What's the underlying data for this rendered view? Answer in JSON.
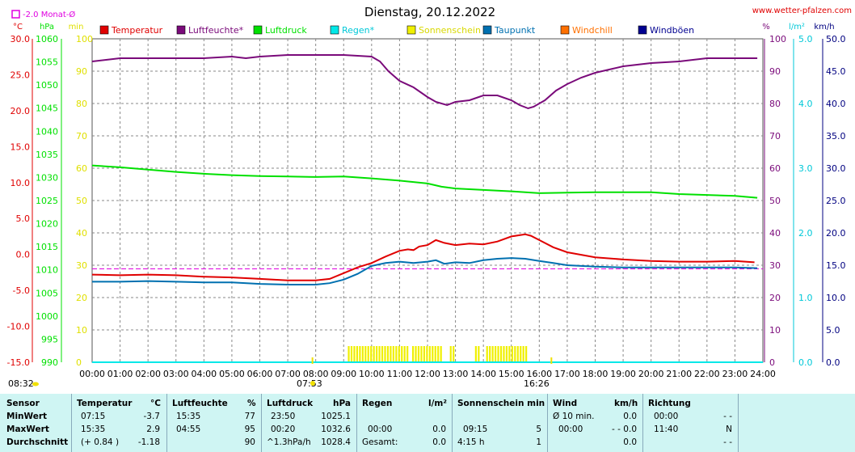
{
  "header": {
    "title": "Dienstag, 20.12.2022",
    "site": "www.wetter-pfalzen.com",
    "monthly_avg": "-2.0 Monat-Ø"
  },
  "colors": {
    "temperature": "#e00000",
    "humidity": "#7a0a7a",
    "pressure": "#00e000",
    "rain": "#00e8e8",
    "sunshine": "#f0f000",
    "dewpoint": "#0070b0",
    "windchill": "#ff7000",
    "gusts": "#000090",
    "monthly_avg": "#e000e0"
  },
  "chart_data": {
    "type": "line",
    "x_unit": "time",
    "x_ticks": [
      "00:00",
      "01:00",
      "02:00",
      "03:00",
      "04:00",
      "05:00",
      "06:00",
      "07:00",
      "08:00",
      "09:00",
      "10:00",
      "11:00",
      "12:00",
      "13:00",
      "14:00",
      "15:00",
      "16:00",
      "17:00",
      "18:00",
      "19:00",
      "20:00",
      "21:00",
      "22:00",
      "23:00",
      "24:00"
    ],
    "x_range": [
      0,
      24
    ],
    "axes": {
      "temperature": {
        "unit": "°C",
        "range": [
          -15,
          30
        ],
        "ticks": [
          "30.0",
          "25.0",
          "20.0",
          "15.0",
          "10.0",
          "5.0",
          "0.0",
          "-5.0",
          "-10.0",
          "-15.0"
        ]
      },
      "pressure": {
        "unit": "hPa",
        "range": [
          990,
          1060
        ],
        "ticks": [
          "1060",
          "1055",
          "1050",
          "1045",
          "1040",
          "1035",
          "1030",
          "1025",
          "1020",
          "1015",
          "1010",
          "1005",
          "1000",
          "995",
          "990"
        ]
      },
      "sunshine_min": {
        "unit": "min",
        "range": [
          0,
          100
        ],
        "ticks": [
          "100",
          "90",
          "80",
          "70",
          "60",
          "50",
          "40",
          "30",
          "20",
          "10",
          "0"
        ]
      },
      "humidity": {
        "unit": "%",
        "range": [
          0,
          100
        ],
        "ticks": [
          "100",
          "90",
          "80",
          "70",
          "60",
          "50",
          "40",
          "30",
          "20",
          "10",
          "0"
        ]
      },
      "rain": {
        "unit": "l/m²",
        "range": [
          0,
          5
        ],
        "ticks": [
          "5.0",
          "4.0",
          "3.0",
          "2.0",
          "1.0",
          "0.0"
        ]
      },
      "wind": {
        "unit": "km/h",
        "range": [
          0,
          50
        ],
        "ticks": [
          "50.0",
          "45.0",
          "40.0",
          "35.0",
          "30.0",
          "25.0",
          "20.0",
          "15.0",
          "10.0",
          "5.0",
          "0.0"
        ]
      }
    },
    "legend": [
      "Temperatur",
      "Luftfeuchte*",
      "Luftdruck",
      "Regen*",
      "Sonnenschein",
      "Taupunkt",
      "Windchill",
      "Windböen"
    ],
    "sunrise": "07:53",
    "sunset": "16:26",
    "daylength": "08:32",
    "monthly_avg_temp": -2.0,
    "series": [
      {
        "name": "Temperatur",
        "axis": "temperature",
        "points": [
          [
            0,
            -2.8
          ],
          [
            1,
            -2.9
          ],
          [
            2,
            -2.8
          ],
          [
            3,
            -2.9
          ],
          [
            4,
            -3.1
          ],
          [
            5,
            -3.2
          ],
          [
            6,
            -3.4
          ],
          [
            7,
            -3.6
          ],
          [
            8,
            -3.6
          ],
          [
            8.5,
            -3.4
          ],
          [
            9,
            -2.6
          ],
          [
            9.5,
            -1.8
          ],
          [
            10,
            -1.2
          ],
          [
            10.5,
            -0.3
          ],
          [
            11,
            0.5
          ],
          [
            11.3,
            0.7
          ],
          [
            11.5,
            0.6
          ],
          [
            11.7,
            1.1
          ],
          [
            12,
            1.3
          ],
          [
            12.3,
            2.0
          ],
          [
            12.6,
            1.6
          ],
          [
            13,
            1.3
          ],
          [
            13.5,
            1.5
          ],
          [
            14,
            1.4
          ],
          [
            14.5,
            1.8
          ],
          [
            15,
            2.5
          ],
          [
            15.5,
            2.8
          ],
          [
            15.7,
            2.6
          ],
          [
            16,
            2.0
          ],
          [
            16.5,
            1.0
          ],
          [
            17,
            0.3
          ],
          [
            18,
            -0.4
          ],
          [
            19,
            -0.7
          ],
          [
            20,
            -0.9
          ],
          [
            21,
            -1.0
          ],
          [
            22,
            -1.0
          ],
          [
            23,
            -0.9
          ],
          [
            23.7,
            -1.1
          ]
        ]
      },
      {
        "name": "Luftfeuchte*",
        "axis": "humidity",
        "points": [
          [
            0,
            93
          ],
          [
            0.5,
            93.5
          ],
          [
            1,
            94
          ],
          [
            2,
            94
          ],
          [
            3,
            94
          ],
          [
            4,
            94
          ],
          [
            5,
            94.5
          ],
          [
            5.5,
            94
          ],
          [
            6,
            94.5
          ],
          [
            7,
            95
          ],
          [
            8,
            95
          ],
          [
            9,
            95
          ],
          [
            10,
            94.5
          ],
          [
            10.3,
            93
          ],
          [
            10.6,
            90
          ],
          [
            11,
            87
          ],
          [
            11.5,
            85
          ],
          [
            12,
            82
          ],
          [
            12.3,
            80.5
          ],
          [
            12.7,
            79.5
          ],
          [
            13,
            80.5
          ],
          [
            13.5,
            81
          ],
          [
            14,
            82.5
          ],
          [
            14.5,
            82.5
          ],
          [
            15,
            81
          ],
          [
            15.3,
            79.5
          ],
          [
            15.6,
            78.5
          ],
          [
            15.8,
            79
          ],
          [
            16.2,
            81
          ],
          [
            16.6,
            84
          ],
          [
            17,
            86
          ],
          [
            17.5,
            88
          ],
          [
            18,
            89.5
          ],
          [
            18.5,
            90.5
          ],
          [
            19,
            91.5
          ],
          [
            20,
            92.5
          ],
          [
            21,
            93
          ],
          [
            21.5,
            93.5
          ],
          [
            22,
            94
          ],
          [
            23,
            94
          ],
          [
            23.8,
            94
          ]
        ]
      },
      {
        "name": "Luftdruck",
        "axis": "pressure",
        "points": [
          [
            0,
            1032.6
          ],
          [
            1,
            1032.2
          ],
          [
            2,
            1031.7
          ],
          [
            3,
            1031.2
          ],
          [
            4,
            1030.8
          ],
          [
            5,
            1030.5
          ],
          [
            6,
            1030.3
          ],
          [
            7,
            1030.2
          ],
          [
            8,
            1030.1
          ],
          [
            9,
            1030.2
          ],
          [
            10,
            1029.8
          ],
          [
            11,
            1029.3
          ],
          [
            12,
            1028.7
          ],
          [
            12.5,
            1028.0
          ],
          [
            13,
            1027.6
          ],
          [
            14,
            1027.3
          ],
          [
            15,
            1027.0
          ],
          [
            16,
            1026.6
          ],
          [
            17,
            1026.7
          ],
          [
            18,
            1026.8
          ],
          [
            19,
            1026.8
          ],
          [
            20,
            1026.8
          ],
          [
            21,
            1026.4
          ],
          [
            22,
            1026.2
          ],
          [
            23,
            1026.0
          ],
          [
            23.8,
            1025.6
          ]
        ]
      },
      {
        "name": "Taupunkt",
        "axis": "temperature",
        "points": [
          [
            0,
            -3.8
          ],
          [
            1,
            -3.8
          ],
          [
            2,
            -3.7
          ],
          [
            3,
            -3.8
          ],
          [
            4,
            -3.9
          ],
          [
            5,
            -3.9
          ],
          [
            6,
            -4.1
          ],
          [
            7,
            -4.2
          ],
          [
            8,
            -4.2
          ],
          [
            8.5,
            -4.0
          ],
          [
            9,
            -3.5
          ],
          [
            9.5,
            -2.7
          ],
          [
            10,
            -1.6
          ],
          [
            10.5,
            -1.2
          ],
          [
            11,
            -1.0
          ],
          [
            11.5,
            -1.2
          ],
          [
            12,
            -1.0
          ],
          [
            12.3,
            -0.8
          ],
          [
            12.6,
            -1.3
          ],
          [
            13,
            -1.1
          ],
          [
            13.5,
            -1.2
          ],
          [
            14,
            -0.8
          ],
          [
            14.5,
            -0.6
          ],
          [
            15,
            -0.5
          ],
          [
            15.5,
            -0.6
          ],
          [
            16,
            -0.9
          ],
          [
            16.5,
            -1.2
          ],
          [
            17,
            -1.5
          ],
          [
            18,
            -1.7
          ],
          [
            19,
            -1.8
          ],
          [
            20,
            -1.8
          ],
          [
            21,
            -1.8
          ],
          [
            22,
            -1.8
          ],
          [
            23,
            -1.8
          ],
          [
            23.8,
            -1.9
          ]
        ]
      },
      {
        "name": "Regen*",
        "axis": "rain",
        "points": [
          [
            0,
            0
          ],
          [
            24,
            0
          ]
        ]
      }
    ],
    "sunshine_intervals": [
      [
        9.15,
        9.75
      ],
      [
        9.85,
        10.45
      ],
      [
        10.55,
        11.25
      ],
      [
        11.45,
        12.5
      ],
      [
        12.8,
        13.0
      ],
      [
        13.7,
        13.85
      ],
      [
        14.1,
        14.3
      ],
      [
        14.4,
        15.5
      ]
    ]
  },
  "stats": {
    "sensor": {
      "label": "Sensor",
      "min": "MinWert",
      "max": "MaxWert",
      "avg": "Durchschnitt"
    },
    "temp": {
      "h1": "Temperatur",
      "h2": "°C",
      "min_time": "07:15",
      "min_val": "-3.7",
      "max_time": "15:35",
      "max_val": "2.9",
      "avg_note": "(+ 0.84 )",
      "avg_val": "-1.18"
    },
    "hum": {
      "h1": "Luftfeuchte",
      "h2": "%",
      "min_time": "15:35",
      "min_val": "77",
      "max_time": "04:55",
      "max_val": "95",
      "avg_val": "90"
    },
    "pres": {
      "h1": "Luftdruck",
      "h2": "hPa",
      "min_time": "23:50",
      "min_val": "1025.1",
      "max_time": "00:20",
      "max_val": "1032.6",
      "avg_note": "^1.3hPa/h",
      "avg_val": "1028.4"
    },
    "rain": {
      "h1": "Regen",
      "h2": "l/m²",
      "max_time": "00:00",
      "max_val": "0.0",
      "avg_note": "Gesamt:",
      "avg_val": "0.0"
    },
    "sun": {
      "h1": "Sonnenschein min",
      "max_time": "09:15",
      "max_val": "5",
      "avg_note": "4:15 h",
      "avg_val": "1"
    },
    "wind": {
      "h1": "Wind",
      "h2": "km/h",
      "min_note": "Ø 10 min.",
      "min_val": "0.0",
      "max_time": "00:00",
      "max_val": "- - 0.0",
      "avg_val": "0.0"
    },
    "dir": {
      "h1": "Richtung",
      "min_time": "00:00",
      "min_val": "- -",
      "max_time": "11:40",
      "max_val": "N",
      "avg_val": "- -"
    }
  }
}
